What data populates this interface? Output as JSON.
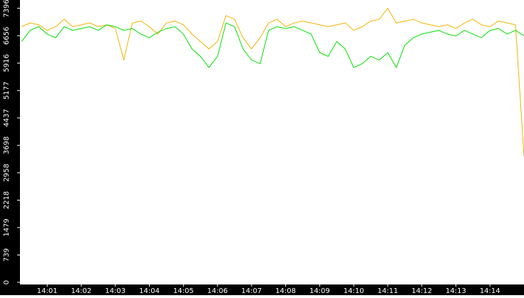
{
  "chart_data": {
    "type": "line",
    "x": [
      0.25,
      0.5,
      0.75,
      1,
      1.25,
      1.5,
      1.75,
      2,
      2.25,
      2.5,
      2.75,
      3,
      3.25,
      3.5,
      3.75,
      4,
      4.25,
      4.5,
      4.75,
      5,
      5.25,
      5.5,
      5.75,
      6,
      6.25,
      6.5,
      6.75,
      7,
      7.25,
      7.5,
      7.75,
      8,
      8.25,
      8.5,
      8.75,
      9,
      9.25,
      9.5,
      9.75,
      10,
      10.25,
      10.5,
      10.75,
      11,
      11.25,
      11.5,
      11.75,
      12,
      12.25,
      12.5,
      12.75,
      13,
      13.25,
      13.5,
      13.75,
      14,
      14.25,
      14.5,
      14.75,
      15
    ],
    "series": [
      {
        "color": "#f0b400",
        "values": [
          6900,
          7000,
          6950,
          6800,
          6900,
          7100,
          6900,
          6950,
          7000,
          6900,
          6950,
          6850,
          6000,
          7000,
          7050,
          6900,
          6700,
          7000,
          7050,
          6950,
          6700,
          6500,
          6300,
          6500,
          7200,
          7100,
          6600,
          6300,
          6600,
          7000,
          7100,
          6900,
          7000,
          7050,
          7000,
          6950,
          6900,
          6950,
          7000,
          6800,
          6900,
          7050,
          7100,
          7400,
          7000,
          7050,
          7100,
          7000,
          6950,
          6900,
          6950,
          6850,
          7000,
          7100,
          6950,
          6900,
          7050,
          7000,
          6950,
          3400
        ]
      },
      {
        "color": "#00e000",
        "values": [
          6500,
          6800,
          6900,
          6700,
          6600,
          6900,
          6800,
          6850,
          6900,
          6800,
          6950,
          6900,
          6800,
          6850,
          6700,
          6600,
          6750,
          6850,
          6900,
          6700,
          6300,
          6100,
          5800,
          6100,
          7000,
          6900,
          6300,
          6000,
          5900,
          6800,
          6900,
          6850,
          6900,
          6800,
          6700,
          6200,
          6100,
          6500,
          6300,
          5800,
          5900,
          6100,
          6000,
          6200,
          5800,
          6400,
          6600,
          6700,
          6750,
          6800,
          6700,
          6650,
          6800,
          6700,
          6600,
          6800,
          6850,
          6700,
          6800,
          6650
        ]
      }
    ],
    "xlim": [
      0.2,
      15
    ],
    "xticks": [
      {
        "value": 1,
        "label": "14:01"
      },
      {
        "value": 2,
        "label": "14:02"
      },
      {
        "value": 3,
        "label": "14:03"
      },
      {
        "value": 4,
        "label": "14:04"
      },
      {
        "value": 5,
        "label": "14:05"
      },
      {
        "value": 6,
        "label": "14:06"
      },
      {
        "value": 7,
        "label": "14:07"
      },
      {
        "value": 8,
        "label": "14:08"
      },
      {
        "value": 9,
        "label": "14:09"
      },
      {
        "value": 10,
        "label": "14:10"
      },
      {
        "value": 11,
        "label": "14:11"
      },
      {
        "value": 12,
        "label": "14:12"
      },
      {
        "value": 13,
        "label": "14:13"
      },
      {
        "value": 14,
        "label": "14:14"
      }
    ],
    "ylim": [
      0,
      7620
    ],
    "yticks": [
      0,
      739,
      1479,
      2218,
      2958,
      3698,
      4437,
      5177,
      5916,
      6656,
      7396
    ]
  }
}
